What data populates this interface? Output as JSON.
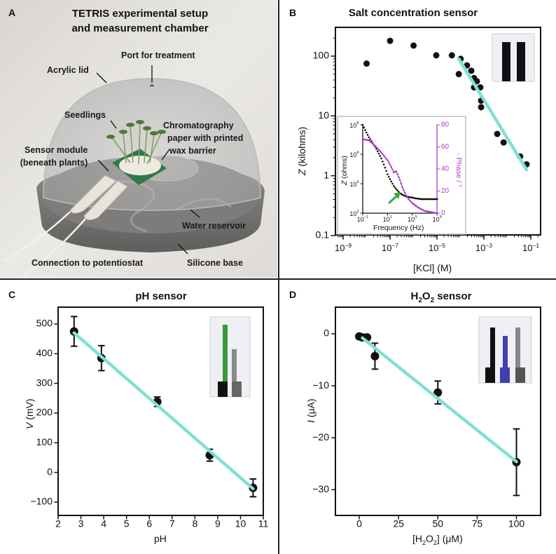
{
  "panels": {
    "a": {
      "letter": "A",
      "title_line1": "TETRIS experimental setup",
      "title_line2": "and measurement chamber",
      "labels": {
        "port": "Port for treatment",
        "lid": "Acrylic lid",
        "seedlings": "Seedlings",
        "chrom1": "Chromatography",
        "chrom2": "paper with printed",
        "chrom3": "wax barrier",
        "sensor1": "Sensor module",
        "sensor2": "(beneath plants)",
        "reservoir": "Water reservoir",
        "connection": "Connection to potentiostat",
        "base": "Silicone base"
      }
    },
    "b": {
      "letter": "B",
      "title": "Salt concentration sensor"
    },
    "c": {
      "letter": "C",
      "title": "pH sensor"
    },
    "d": {
      "letter": "D",
      "title_pre": "H",
      "title_sub1": "2",
      "title_mid": "O",
      "title_sub2": "2",
      "title_post": " sensor"
    }
  },
  "colors": {
    "fit": "#7fe0d4",
    "phase": "#a640c8",
    "arrow": "#3aaa3a",
    "ph_bar": "#3a9a3a",
    "h2o2_bar": "#4040b0"
  },
  "chart_data": [
    {
      "id": "salt",
      "type": "scatter",
      "xscale": "log",
      "yscale": "log",
      "xlabel": "[KCl] (M)",
      "ylabel_italic": "Z",
      "ylabel_rest": " (kilohms)",
      "xlim": [
        4.7e-10,
        0.25
      ],
      "ylim": [
        0.1,
        300
      ],
      "xticks": [
        -9,
        -7,
        -5,
        -3,
        -1
      ],
      "yticks": [
        {
          "v": 100,
          "label": "100"
        },
        {
          "v": 10,
          "label": "10"
        },
        {
          "v": 1,
          "label": "1"
        },
        {
          "v": 0.1,
          "label": "0.1"
        }
      ],
      "points": [
        [
          1e-08,
          75
        ],
        [
          1e-07,
          180
        ],
        [
          1e-06,
          150
        ],
        [
          9.3e-06,
          103
        ],
        [
          4.3e-05,
          103
        ],
        [
          0.000102,
          90
        ],
        [
          8.5e-05,
          50
        ],
        [
          0.00019,
          70
        ],
        [
          0.00029,
          57
        ],
        [
          0.00038,
          43
        ],
        [
          0.0005,
          38
        ],
        [
          0.00038,
          30
        ],
        [
          0.0007,
          30
        ],
        [
          0.00076,
          18
        ],
        [
          0.00076,
          14
        ],
        [
          0.0037,
          5
        ],
        [
          0.0069,
          3.6
        ],
        [
          0.035,
          2.1
        ],
        [
          0.066,
          1.55
        ]
      ],
      "fit": [
        [
          8.5e-05,
          90
        ],
        [
          0.066,
          1.26
        ]
      ]
    },
    {
      "id": "salt-inset",
      "type": "line",
      "xlabel": "Frequency (Hz)",
      "ylabel_italic": "Z",
      "ylabel_rest": " (ohms)",
      "y2label": "- Phase / °",
      "xticks": [
        -1,
        1,
        3,
        5
      ],
      "yticks": [
        2,
        3,
        4,
        5
      ],
      "y2ticks": [
        0,
        20,
        40,
        60,
        80
      ],
      "y2lim": [
        0,
        80
      ],
      "series": [
        {
          "name": "Z",
          "log_freq": [
            -1,
            -0.75,
            -0.5,
            -0.25,
            0,
            0.25,
            0.5,
            0.75,
            1,
            1.25,
            1.5,
            1.75,
            2,
            2.25,
            2.5,
            2.75,
            3,
            3.25,
            3.5,
            3.75,
            4,
            4.5,
            5
          ],
          "values": [
            100000,
            60000,
            38000,
            26000,
            18000,
            11500,
            7200,
            4000,
            2100,
            1300,
            850,
            620,
            480,
            410,
            370,
            350,
            340,
            320,
            310,
            300,
            300,
            300,
            300
          ]
        },
        {
          "name": "Phase",
          "log_freq": [
            -1,
            -0.5,
            0,
            0.5,
            1,
            1.3,
            1.5,
            1.7,
            2,
            2.25,
            2.5,
            2.75,
            3,
            3.5,
            4,
            4.5,
            5
          ],
          "values": [
            67,
            66,
            61,
            55,
            48,
            42,
            37,
            38,
            30,
            22,
            16,
            12,
            9,
            5,
            2,
            1,
            0
          ]
        }
      ]
    },
    {
      "id": "ph",
      "type": "scatter",
      "xlabel": "pH",
      "ylabel_italic": "V",
      "ylabel_rest": " (mV)",
      "xlim": [
        2,
        11
      ],
      "ylim": [
        -145,
        557
      ],
      "xticks": [
        2,
        3,
        4,
        5,
        6,
        7,
        8,
        9,
        10,
        11
      ],
      "yticks": [
        500,
        400,
        300,
        200,
        100,
        0,
        -100
      ],
      "points": [
        {
          "x": 2.7,
          "y": 475,
          "err": 50
        },
        {
          "x": 3.9,
          "y": 385,
          "err": 42
        },
        {
          "x": 6.35,
          "y": 238,
          "err": 16
        },
        {
          "x": 8.65,
          "y": 58,
          "err": 20
        },
        {
          "x": 10.55,
          "y": -52,
          "err": 30
        }
      ],
      "fit": [
        [
          2.7,
          470
        ],
        [
          10.55,
          -55
        ]
      ]
    },
    {
      "id": "h2o2",
      "type": "scatter",
      "xlabel_pre": "[H",
      "xlabel_sub1": "2",
      "xlabel_mid": "O",
      "xlabel_sub2": "2",
      "xlabel_post": "] (μM)",
      "ylabel_italic": "I",
      "ylabel_rest": " (μA)",
      "xlim": [
        -15,
        115
      ],
      "ylim": [
        -35,
        5.1
      ],
      "xticks": [
        0,
        25,
        50,
        75,
        100
      ],
      "yticks": [
        0,
        -10,
        -20,
        -30
      ],
      "points": [
        {
          "x": 0,
          "y": -0.5,
          "err": 0
        },
        {
          "x": 2,
          "y": -0.7,
          "err": 0
        },
        {
          "x": 5,
          "y": -0.7,
          "err": 0
        },
        {
          "x": 10,
          "y": -4.3,
          "err": 2.5
        },
        {
          "x": 50,
          "y": -11.3,
          "err": 2.2
        },
        {
          "x": 100,
          "y": -24.7,
          "err": 6.4
        }
      ],
      "fit": [
        [
          2,
          -0.8
        ],
        [
          100,
          -24.6
        ]
      ]
    }
  ]
}
